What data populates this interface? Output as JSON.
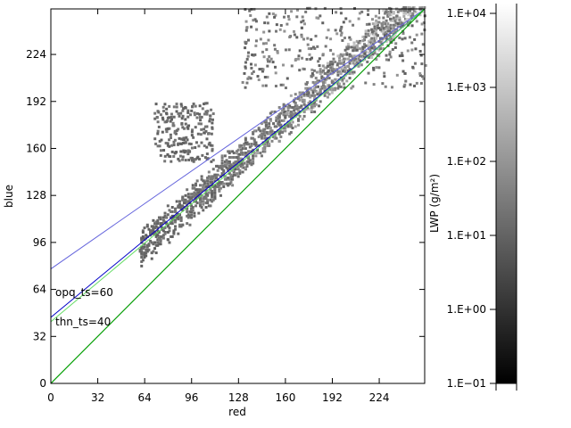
{
  "chart_data": {
    "type": "scatter",
    "title": "",
    "xlabel": "red",
    "ylabel": "blue",
    "xlim": [
      0,
      255
    ],
    "ylim": [
      0,
      255
    ],
    "xticks": [
      "0",
      "32",
      "64",
      "96",
      "128",
      "160",
      "192",
      "224"
    ],
    "yticks": [
      "0",
      "32",
      "64",
      "96",
      "128",
      "160",
      "192",
      "224"
    ],
    "grid": false,
    "annotations": [
      {
        "text": "opq_ts=60",
        "x": 3,
        "y": 60
      },
      {
        "text": "thn_ts=40",
        "x": 3,
        "y": 40
      }
    ],
    "lines": [
      {
        "color": "#000000",
        "x": [
          0,
          255
        ],
        "y": [
          0,
          255
        ]
      },
      {
        "color": "#6464dc",
        "x": [
          0,
          255
        ],
        "y": [
          78,
          255
        ]
      },
      {
        "color": "#0000c8",
        "x": [
          0,
          255
        ],
        "y": [
          45,
          255
        ]
      },
      {
        "color": "#64dc64",
        "x": [
          0,
          255
        ],
        "y": [
          42,
          255
        ]
      },
      {
        "color": "#00b400",
        "x": [
          0,
          255
        ],
        "y": [
          0,
          255
        ]
      }
    ],
    "scatter": {
      "main_band": {
        "x_range": [
          60,
          255
        ],
        "intercept": 30,
        "slope": 0.9,
        "spread": 20
      },
      "upper_cluster": {
        "x_range": [
          70,
          110
        ],
        "y_range": [
          150,
          190
        ]
      },
      "upper_scatter": {
        "x_range": [
          130,
          255
        ],
        "y_range": [
          200,
          255
        ]
      }
    },
    "colorbar": {
      "label": "LWP (g/m²)",
      "scale": "log",
      "range": [
        0.1,
        10000
      ],
      "colors": [
        "#000000",
        "#ffffff"
      ],
      "ticks": [
        "1.E−01",
        "1.E+00",
        "1.E+01",
        "1.E+02",
        "1.E+03",
        "1.E+04"
      ]
    }
  }
}
